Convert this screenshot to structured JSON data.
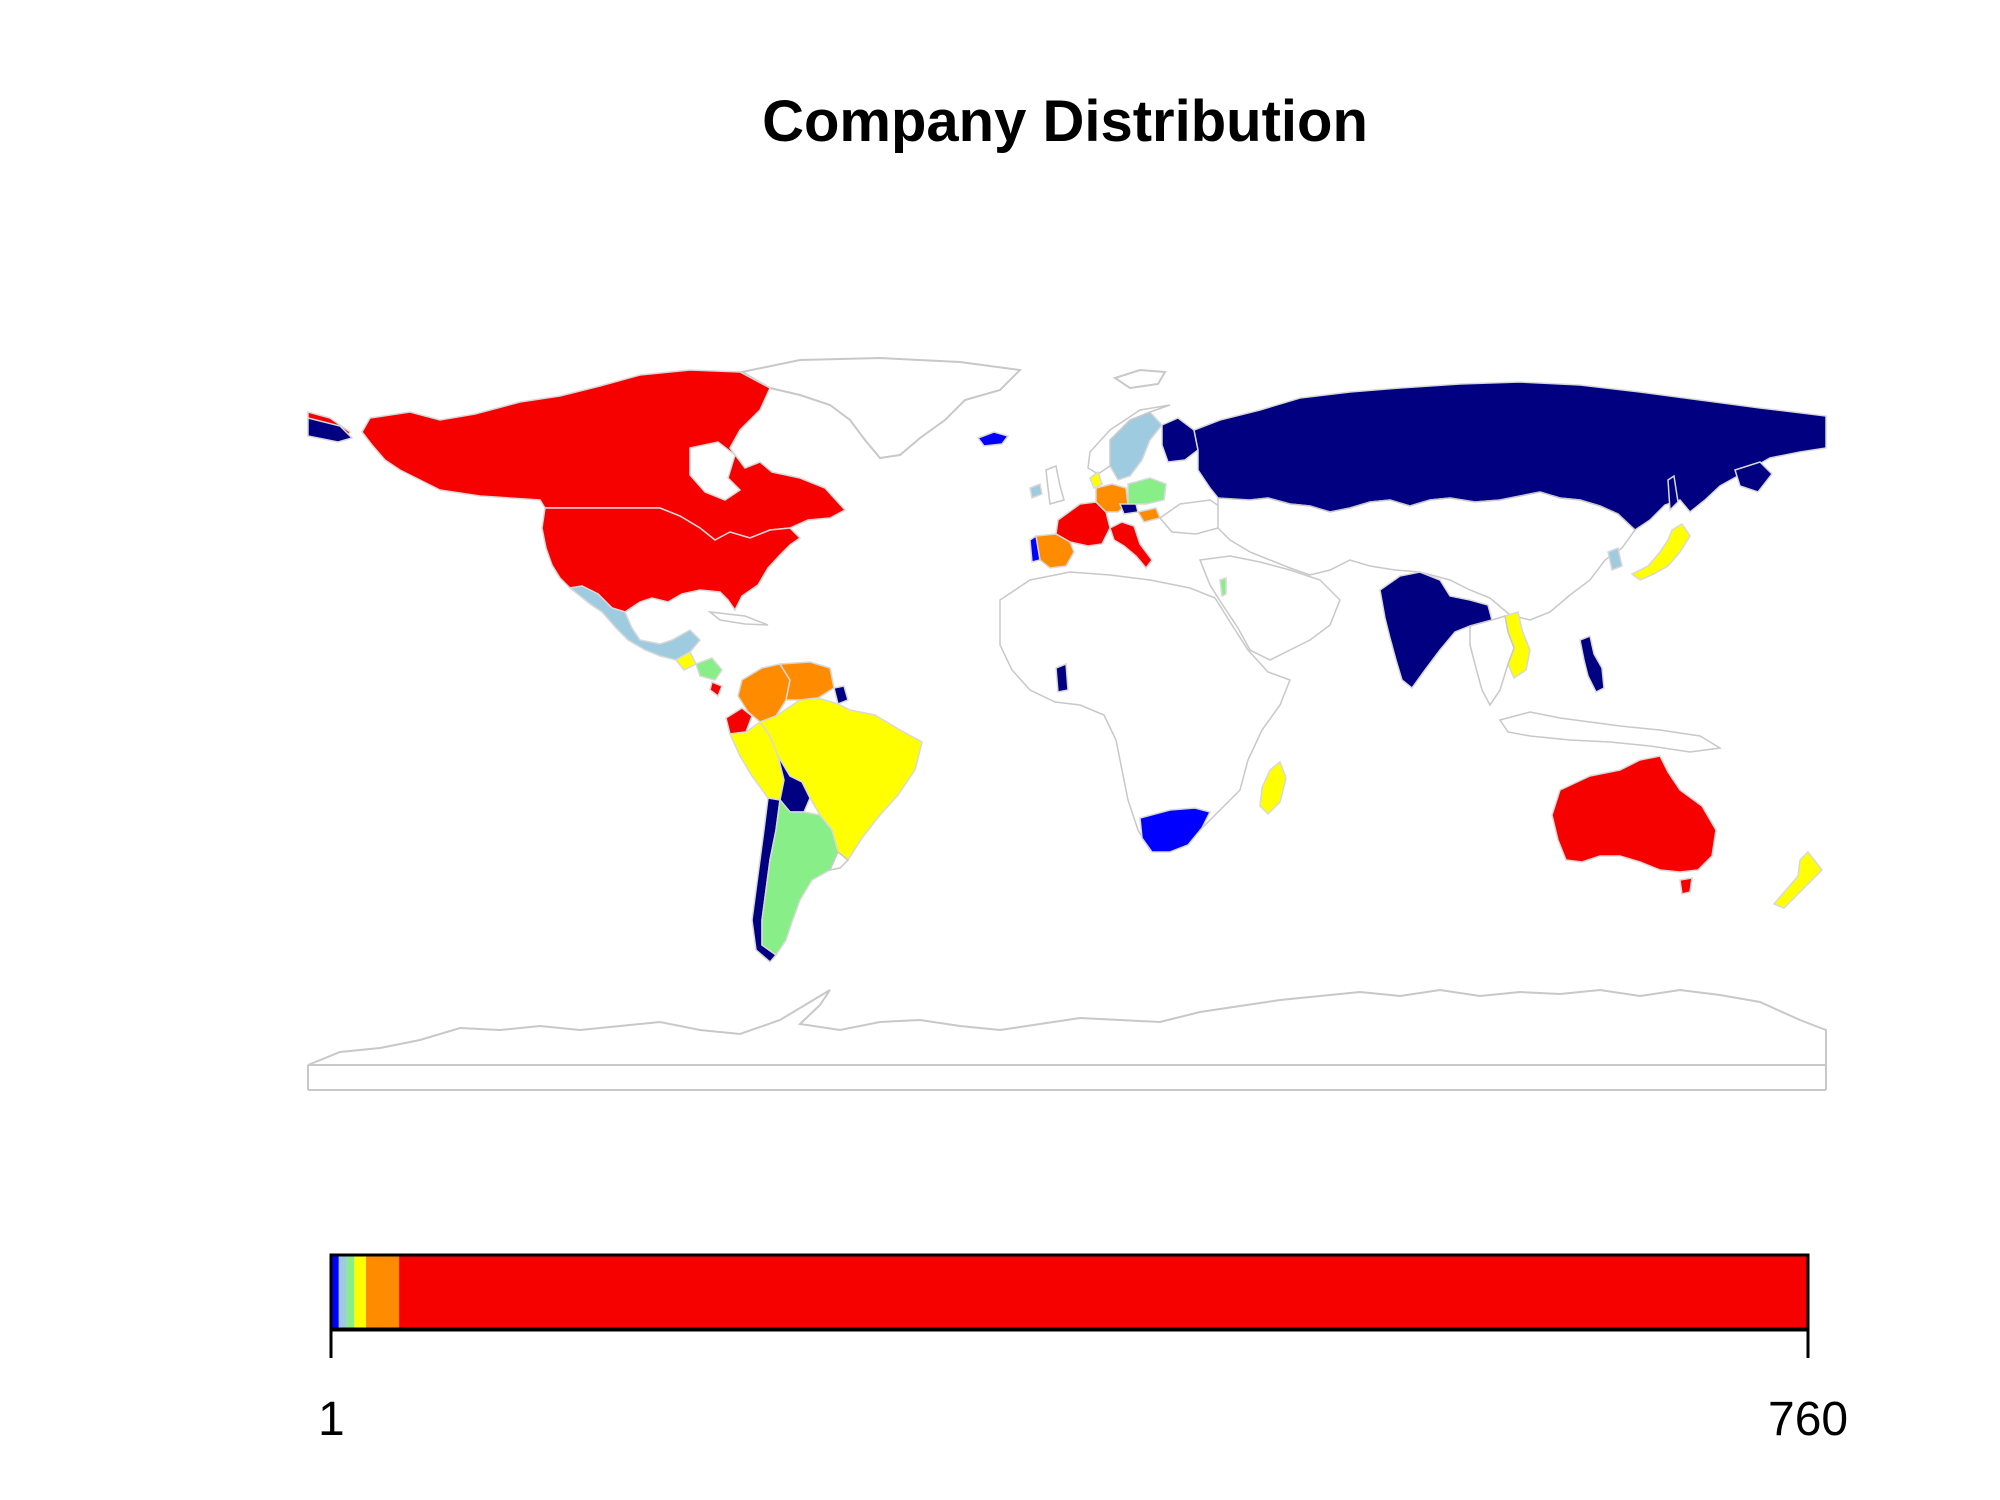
{
  "title": "Company Distribution",
  "colors": {
    "red": "#f70000",
    "orange": "#ff8c00",
    "yellow": "#ffff00",
    "light_green": "#88ee88",
    "light_blue": "#9fcbe0",
    "blue": "#0000ff",
    "navy": "#000080",
    "border": "#c8c8c8",
    "land": "#ffffff"
  },
  "legend": {
    "min_label": "1",
    "max_label": "760",
    "scale": [
      {
        "color": "#0000ff",
        "from": 1,
        "to": 5
      },
      {
        "color": "#9fcbe0",
        "from": 5,
        "to": 9
      },
      {
        "color": "#88ee88",
        "from": 9,
        "to": 13
      },
      {
        "color": "#ffff00",
        "from": 13,
        "to": 19
      },
      {
        "color": "#ff8c00",
        "from": 19,
        "to": 36
      },
      {
        "color": "#f70000",
        "from": 36,
        "to": 760
      }
    ]
  },
  "countries": [
    {
      "name": "Canada",
      "color": "red"
    },
    {
      "name": "United States",
      "color": "red"
    },
    {
      "name": "Australia",
      "color": "red"
    },
    {
      "name": "France",
      "color": "red"
    },
    {
      "name": "Italy",
      "color": "red"
    },
    {
      "name": "Ecuador",
      "color": "red"
    },
    {
      "name": "Spain",
      "color": "orange"
    },
    {
      "name": "Germany",
      "color": "orange"
    },
    {
      "name": "Colombia",
      "color": "orange"
    },
    {
      "name": "Venezuela",
      "color": "orange"
    },
    {
      "name": "Brazil",
      "color": "yellow"
    },
    {
      "name": "Peru",
      "color": "yellow"
    },
    {
      "name": "Japan",
      "color": "yellow"
    },
    {
      "name": "Vietnam",
      "color": "yellow"
    },
    {
      "name": "Madagascar",
      "color": "yellow"
    },
    {
      "name": "New Zealand",
      "color": "yellow"
    },
    {
      "name": "Argentina",
      "color": "light_green"
    },
    {
      "name": "Poland",
      "color": "light_green"
    },
    {
      "name": "Mexico",
      "color": "light_blue"
    },
    {
      "name": "Sweden",
      "color": "light_blue"
    },
    {
      "name": "Ireland",
      "color": "light_blue"
    },
    {
      "name": "South Korea",
      "color": "light_blue"
    },
    {
      "name": "South Africa",
      "color": "blue"
    },
    {
      "name": "Portugal",
      "color": "blue"
    },
    {
      "name": "Iceland",
      "color": "blue"
    },
    {
      "name": "Russia",
      "color": "navy"
    },
    {
      "name": "India",
      "color": "navy"
    },
    {
      "name": "Bolivia",
      "color": "navy"
    },
    {
      "name": "Chile",
      "color": "navy"
    },
    {
      "name": "Philippines",
      "color": "navy"
    },
    {
      "name": "Ghana",
      "color": "navy"
    },
    {
      "name": "Guyana",
      "color": "navy"
    },
    {
      "name": "Finland",
      "color": "navy"
    }
  ]
}
